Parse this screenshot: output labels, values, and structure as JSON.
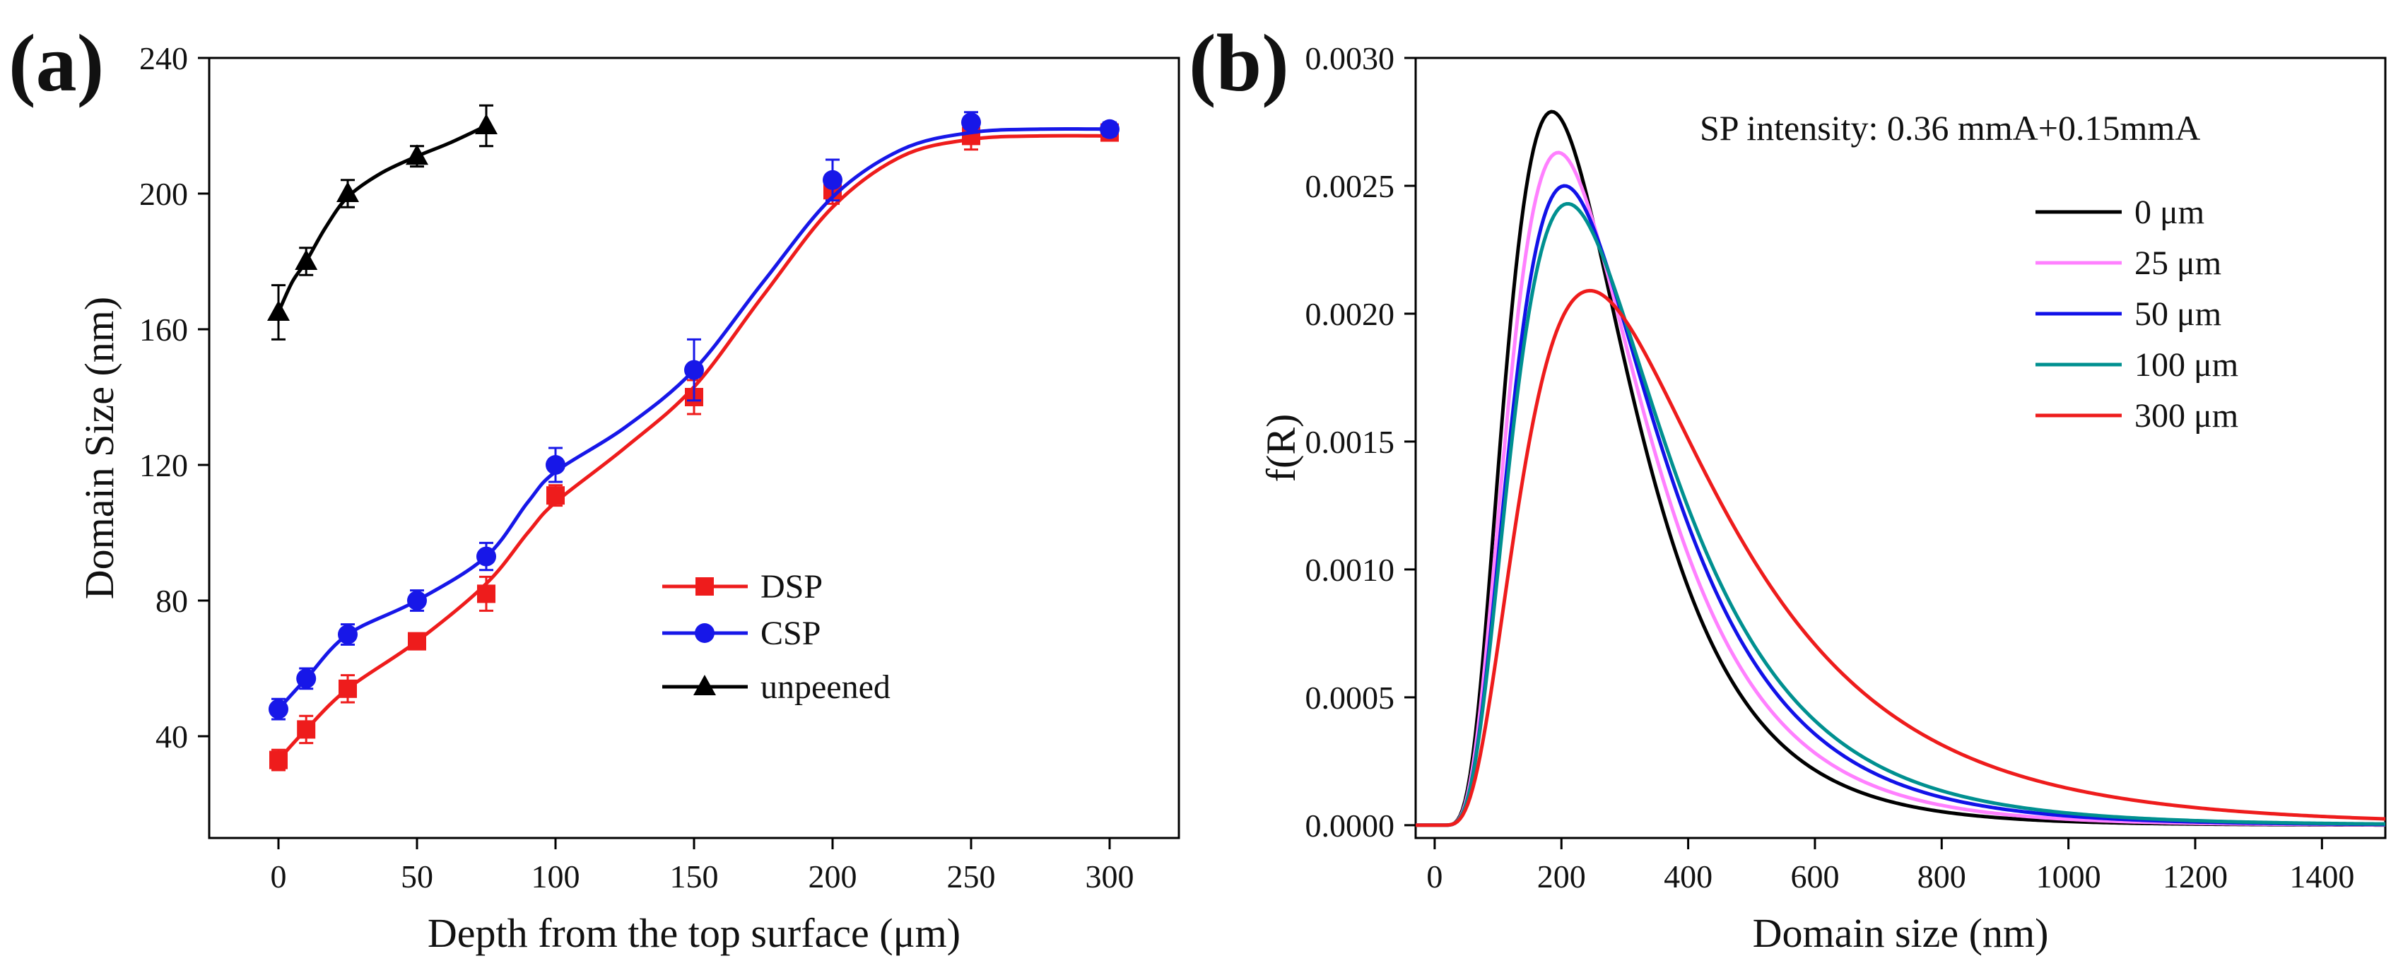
{
  "chart_data": [
    {
      "panel_label": "(a)",
      "type": "line",
      "xlabel": "Depth from the top surface (μm)",
      "ylabel": "Domain Size (nm)",
      "xlim": [
        -25,
        325
      ],
      "ylim": [
        10,
        240
      ],
      "xticks": [
        "0",
        "50",
        "100",
        "150",
        "200",
        "250",
        "300"
      ],
      "yticks": [
        "40",
        "80",
        "120",
        "160",
        "200",
        "240"
      ],
      "legend_position": "center-right",
      "series": [
        {
          "name": "DSP",
          "color": "#ee1c1c",
          "marker": "square",
          "x": [
            0,
            10,
            25,
            50,
            75,
            100,
            150,
            200,
            250,
            300
          ],
          "y": [
            33,
            42,
            54,
            68,
            82,
            111,
            140,
            201,
            217,
            218
          ],
          "error": [
            3,
            4,
            4,
            2,
            5,
            3,
            5,
            4,
            4,
            2
          ],
          "fit": {
            "x": [
              0,
              10,
              25,
              50,
              75,
              90,
              100,
              125,
              150,
              175,
              200,
              225,
              250,
              275,
              300
            ],
            "y": [
              33,
              42,
              54,
              68,
              85,
              100,
              109,
              125,
              143,
              170,
              196,
              211,
              216,
              217,
              217
            ]
          }
        },
        {
          "name": "CSP",
          "color": "#1717e8",
          "marker": "circle",
          "x": [
            0,
            10,
            25,
            50,
            75,
            100,
            150,
            200,
            250,
            300
          ],
          "y": [
            48,
            57,
            70,
            80,
            93,
            120,
            148,
            204,
            221,
            219
          ],
          "error": [
            3,
            3,
            3,
            3,
            4,
            5,
            9,
            6,
            3,
            2
          ],
          "fit": {
            "x": [
              0,
              10,
              25,
              50,
              75,
              90,
              100,
              125,
              150,
              175,
              200,
              225,
              250,
              275,
              300
            ],
            "y": [
              48,
              57,
              70,
              80,
              93,
              109,
              118,
              131,
              148,
              174,
              199,
              213,
              218,
              219,
              219
            ]
          }
        },
        {
          "name": "unpeened",
          "color": "#000000",
          "marker": "triangle",
          "x": [
            0,
            10,
            25,
            50,
            75
          ],
          "y": [
            165,
            180,
            200,
            211,
            220
          ],
          "error": [
            8,
            4,
            4,
            3,
            6
          ],
          "fit": {
            "x": [
              0,
              5,
              10,
              17,
              25,
              37,
              50,
              62,
              75
            ],
            "y": [
              165,
              174,
              180,
              190,
              199,
              206,
              211,
              215,
              220
            ]
          }
        }
      ]
    },
    {
      "panel_label": "(b)",
      "type": "line",
      "xlabel": "Domain size (nm)",
      "ylabel": "f(R)",
      "xlim": [
        -30,
        1500
      ],
      "ylim": [
        -5e-05,
        0.003
      ],
      "xticks": [
        "0",
        "200",
        "400",
        "600",
        "800",
        "1000",
        "1200",
        "1400"
      ],
      "yticks": [
        "0.0000",
        "0.0005",
        "0.0010",
        "0.0015",
        "0.0020",
        "0.0025",
        "0.0030"
      ],
      "annotation": "SP intensity: 0.36 mmA+0.15mmA",
      "legend_position": "upper-right",
      "series": [
        {
          "name": "0 μm",
          "color": "#000000",
          "peak_x": 185,
          "peak_y": 0.00279
        },
        {
          "name": "25 μm",
          "color": "#ff80ff",
          "peak_x": 195,
          "peak_y": 0.00263
        },
        {
          "name": "50 μm",
          "color": "#1212e8",
          "peak_x": 205,
          "peak_y": 0.0025
        },
        {
          "name": "100 μm",
          "color": "#009090",
          "peak_x": 210,
          "peak_y": 0.00243
        },
        {
          "name": "300 μm",
          "color": "#ee1c1c",
          "peak_x": 245,
          "peak_y": 0.00209
        }
      ]
    }
  ]
}
